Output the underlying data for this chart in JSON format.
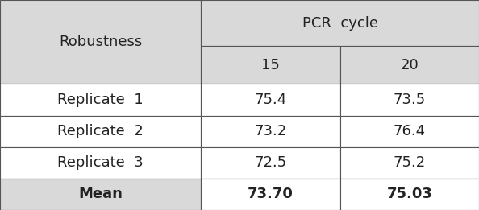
{
  "header_main": "Robustness",
  "header_col": "PCR  cycle",
  "sub_headers": [
    "15",
    "20"
  ],
  "rows": [
    {
      "label": "Replicate  1",
      "val1": "75.4",
      "val2": "73.5"
    },
    {
      "label": "Replicate  2",
      "val1": "73.2",
      "val2": "76.4"
    },
    {
      "label": "Replicate  3",
      "val1": "72.5",
      "val2": "75.2"
    },
    {
      "label": "Mean",
      "val1": "73.70",
      "val2": "75.03"
    }
  ],
  "bg_header": "#d9d9d9",
  "bg_white": "#ffffff",
  "border_color": "#555555",
  "text_color": "#222222",
  "font_size": 13,
  "bold_rows": [
    3
  ],
  "figsize": [
    5.94,
    2.61
  ],
  "dpi": 100
}
